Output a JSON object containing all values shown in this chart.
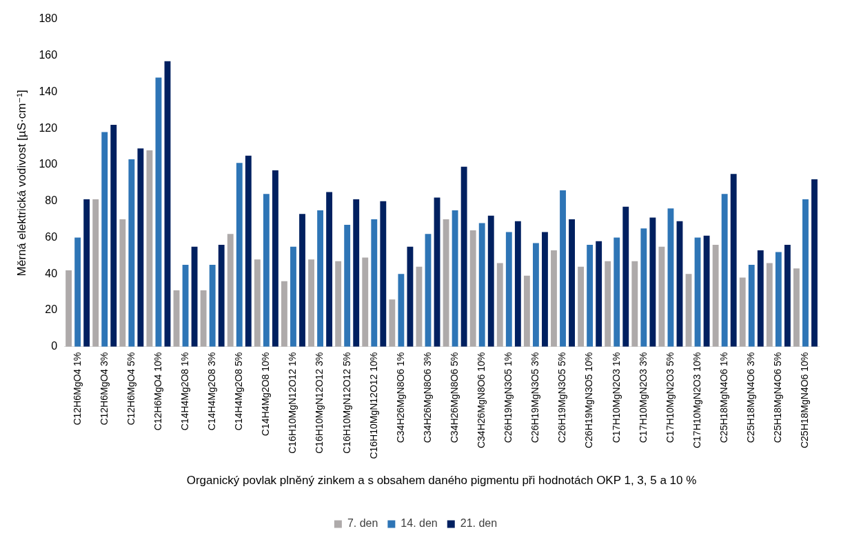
{
  "chart_data": {
    "type": "bar",
    "xlabel": "Organický povlak plněný zinkem a s obsahem daného pigmentu při hodnotách OKP 1, 3, 5 a 10 %",
    "ylabel": "Měrná elektrická vodivost [µS·cm⁻¹]",
    "categories": [
      "C12H6MgO4 1%",
      "C12H6MgO4 3%",
      "C12H6MgO4 5%",
      "C12H6MgO4 10%",
      "C14H4Mg2O8 1%",
      "C14H4Mg2O8 3%",
      "C14H4Mg2O8 5%",
      "C14H4Mg2O8 10%",
      "C16H10MgN12O12 1%",
      "C16H10MgN12O12 3%",
      "C16H10MgN12O12 5%",
      "C16H10MgN12O12 10%",
      "C34H26MgN8O6 1%",
      "C34H26MgN8O6 3%",
      "C34H26MgN8O6 5%",
      "C34H26MgN8O6 10%",
      "C26H19MgN3O5 1%",
      "C26H19MgN3O5 3%",
      "C26H19MgN3O5 5%",
      "C26H19MgN3O5 10%",
      "C17H10MgN2O3 1%",
      "C17H10MgN2O3 3%",
      "C17H10MgN2O3 5%",
      "C17H10MgN2O3 10%",
      "C25H18MgN4O6 1%",
      "C25H18MgN4O6 3%",
      "C25H18MgN4O6 5%",
      "C25H18MgN4O6 10%"
    ],
    "series": [
      {
        "name": "7. den",
        "color": "#aeaaaa",
        "values": [
          42,
          81,
          70,
          108,
          31,
          31,
          62,
          48,
          36,
          48,
          47,
          49,
          26,
          44,
          70,
          64,
          46,
          39,
          53,
          44,
          47,
          47,
          55,
          40,
          56,
          38,
          46,
          43
        ]
      },
      {
        "name": "14. den",
        "color": "#2e75b6",
        "values": [
          60,
          118,
          103,
          148,
          45,
          45,
          101,
          84,
          55,
          75,
          67,
          70,
          40,
          62,
          75,
          68,
          63,
          57,
          86,
          56,
          60,
          65,
          76,
          60,
          84,
          45,
          52,
          81
        ]
      },
      {
        "name": "21. den",
        "color": "#002060",
        "values": [
          81,
          122,
          109,
          157,
          55,
          56,
          105,
          97,
          73,
          85,
          81,
          80,
          55,
          82,
          99,
          72,
          69,
          63,
          70,
          58,
          77,
          71,
          69,
          61,
          95,
          53,
          56,
          92
        ]
      }
    ],
    "ylim": [
      0,
      180
    ],
    "yticks": [
      0,
      20,
      40,
      60,
      80,
      100,
      120,
      140,
      160,
      180
    ],
    "grid": false,
    "legend": "bottom"
  }
}
